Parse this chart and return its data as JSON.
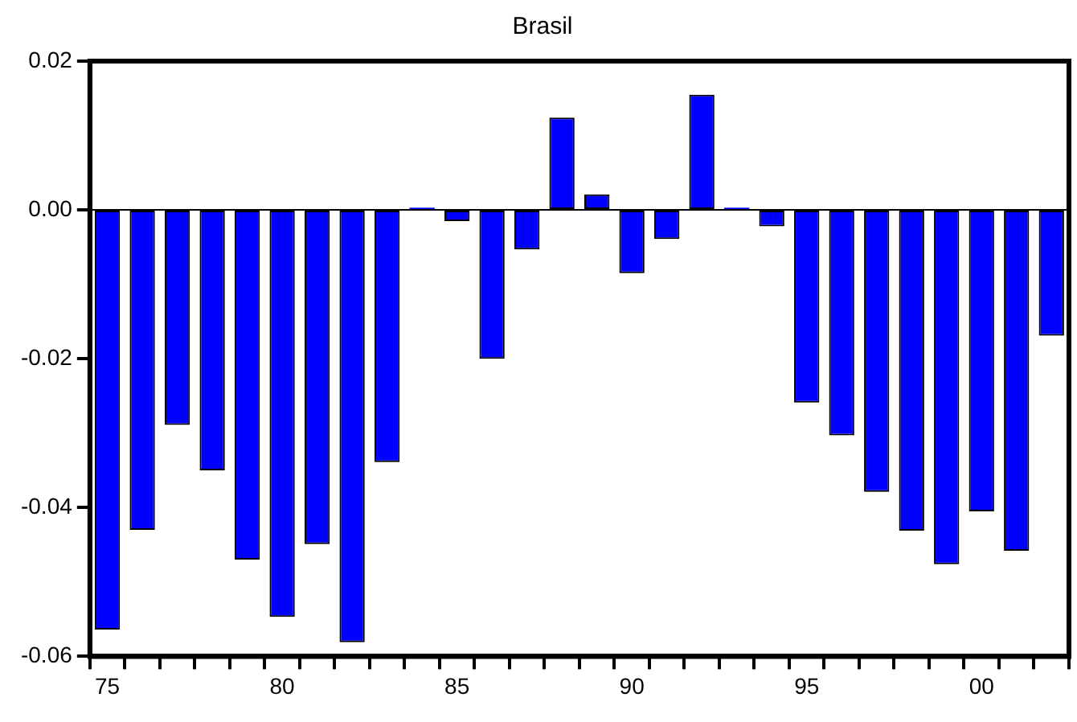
{
  "chart_data": {
    "type": "bar",
    "title": "Brasil",
    "categories": [
      "75",
      null,
      null,
      null,
      null,
      "80",
      null,
      null,
      null,
      null,
      "85",
      null,
      null,
      null,
      null,
      "90",
      null,
      null,
      null,
      null,
      "95",
      null,
      null,
      null,
      null,
      "00",
      null,
      null
    ],
    "values": [
      -0.0564,
      -0.043,
      -0.0289,
      -0.035,
      -0.047,
      -0.0547,
      -0.0449,
      -0.0581,
      -0.0339,
      0.0003,
      -0.0015,
      -0.02,
      -0.0053,
      0.0124,
      0.0021,
      -0.0085,
      -0.0039,
      0.0155,
      0.0003,
      -0.0022,
      -0.0259,
      -0.0303,
      -0.0379,
      -0.0431,
      -0.0476,
      -0.0405,
      -0.0458,
      -0.0169
    ],
    "color": "#0000ff",
    "ylim": [
      -0.06,
      0.02
    ],
    "yticks": [
      {
        "value": 0.02,
        "label": "0.02"
      },
      {
        "value": 0,
        "label": "0.00"
      },
      {
        "value": -0.02,
        "label": "-0.02"
      },
      {
        "value": -0.04,
        "label": "-0.04"
      },
      {
        "value": -0.06,
        "label": "-0.06"
      }
    ],
    "ref_lines": [
      {
        "axis": "y",
        "value": 0,
        "color": "#000000"
      }
    ],
    "grid": false,
    "legend": false
  }
}
